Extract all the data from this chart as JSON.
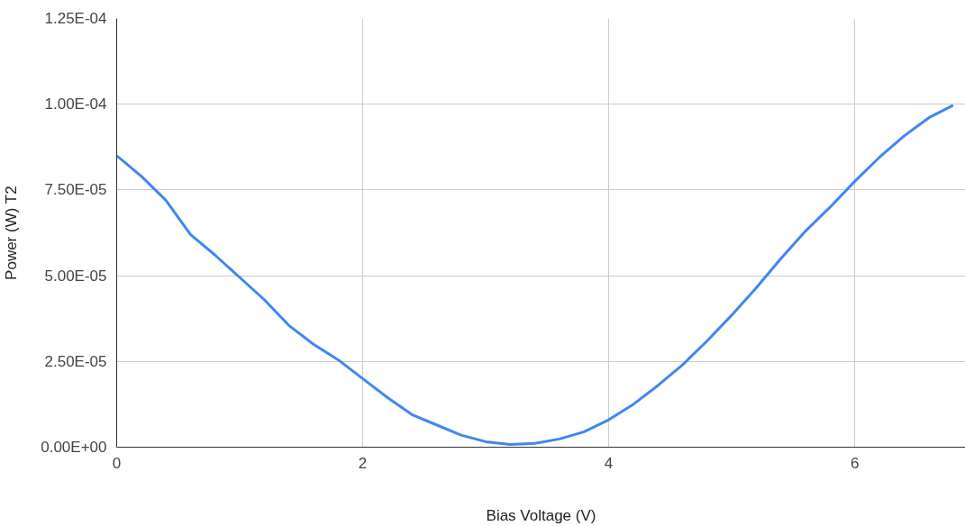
{
  "chart_data": {
    "type": "line",
    "xlabel": "Bias Voltage (V)",
    "ylabel": "Power (W) T2",
    "x": [
      0,
      0.2,
      0.4,
      0.6,
      0.8,
      1.0,
      1.2,
      1.4,
      1.6,
      1.8,
      2.0,
      2.2,
      2.4,
      2.6,
      2.8,
      3.0,
      3.2,
      3.4,
      3.6,
      3.8,
      4.0,
      4.2,
      4.4,
      4.6,
      4.8,
      5.0,
      5.2,
      5.4,
      5.6,
      5.8,
      6.0,
      6.2,
      6.4,
      6.6,
      6.8
    ],
    "series": [
      {
        "color": "#4285f4",
        "values": [
          8.5e-05,
          7.9e-05,
          7.2e-05,
          6.2e-05,
          5.6e-05,
          4.95e-05,
          4.3e-05,
          3.55e-05,
          3e-05,
          2.55e-05,
          2e-05,
          1.45e-05,
          9.5e-06,
          6.5e-06,
          3.5e-06,
          1.6e-06,
          8e-07,
          1.1e-06,
          2.4e-06,
          4.5e-06,
          8e-06,
          1.25e-05,
          1.8e-05,
          2.4e-05,
          3.1e-05,
          3.85e-05,
          4.65e-05,
          5.5e-05,
          6.3e-05,
          7e-05,
          7.75e-05,
          8.45e-05,
          9.07e-05,
          9.6e-05,
          9.97e-05
        ]
      }
    ],
    "xlim": [
      0,
      6.9
    ],
    "xticks": [
      0,
      2,
      4,
      6
    ],
    "ylim": [
      0,
      0.000125
    ],
    "yticks": [
      {
        "value": 0,
        "label": "0.00E+00"
      },
      {
        "value": 2.5e-05,
        "label": "2.50E-05"
      },
      {
        "value": 5e-05,
        "label": "5.00E-05"
      },
      {
        "value": 7.5e-05,
        "label": "7.50E-05"
      },
      {
        "value": 0.0001,
        "label": "1.00E-04"
      },
      {
        "value": 0.000125,
        "label": "1.25E-04"
      }
    ],
    "grid": true,
    "marker": "none",
    "line_style": "solid"
  }
}
